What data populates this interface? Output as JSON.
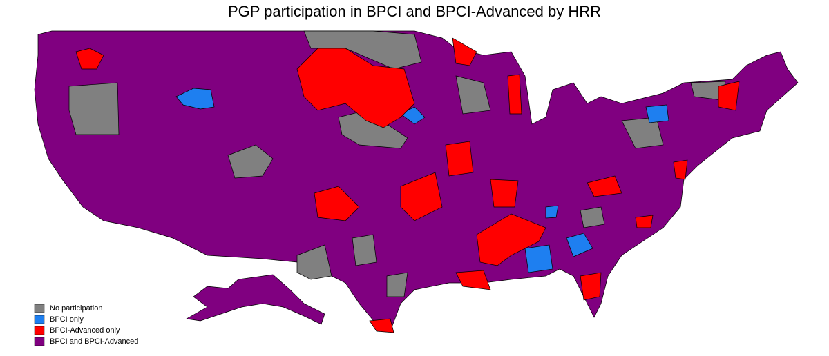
{
  "title": "PGP participation in BPCI and BPCI-Advanced by HRR",
  "legend": [
    {
      "label": "No participation",
      "color": "#808080"
    },
    {
      "label": "BPCI only",
      "color": "#1e7ff0"
    },
    {
      "label": "BPCI-Advanced only",
      "color": "#ff0000"
    },
    {
      "label": "BPCI and BPCI-Advanced",
      "color": "#800080"
    }
  ]
}
